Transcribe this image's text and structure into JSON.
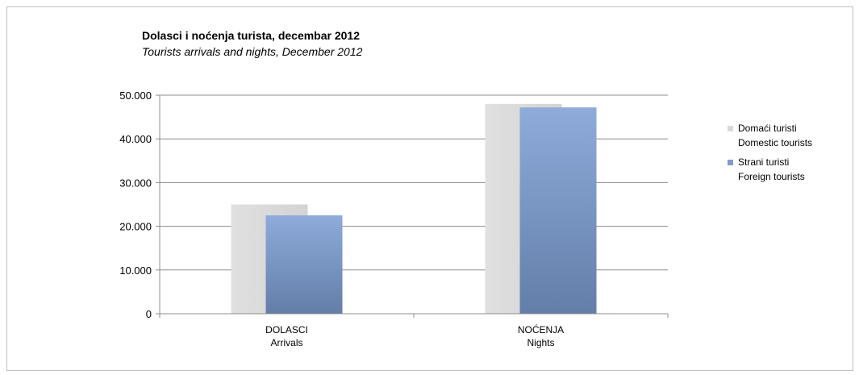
{
  "chart_data": {
    "type": "bar",
    "title": "Dolasci i noćenja turista, decembar 2012",
    "subtitle": "Tourists arrivals and nights, December 2012",
    "categories": [
      {
        "line1": "DOLASCI",
        "line2": "Arrivals"
      },
      {
        "line1": "NOĆENJA",
        "line2": "Nights"
      }
    ],
    "series": [
      {
        "name": "Domaći turisti",
        "name2": "Domestic tourists",
        "values": [
          25000,
          48000
        ],
        "color": "#d9d9d9"
      },
      {
        "name": "Strani turisti",
        "name2": "Foreign tourists",
        "values": [
          22500,
          47200
        ],
        "color": "#7f9cc9"
      }
    ],
    "ylim": [
      0,
      50000
    ],
    "yticks": [
      0,
      10000,
      20000,
      30000,
      40000,
      50000
    ],
    "ytick_labels": [
      "0",
      "10.000",
      "20.000",
      "30.000",
      "40.000",
      "50.000"
    ],
    "grid": true,
    "legend": "right"
  }
}
